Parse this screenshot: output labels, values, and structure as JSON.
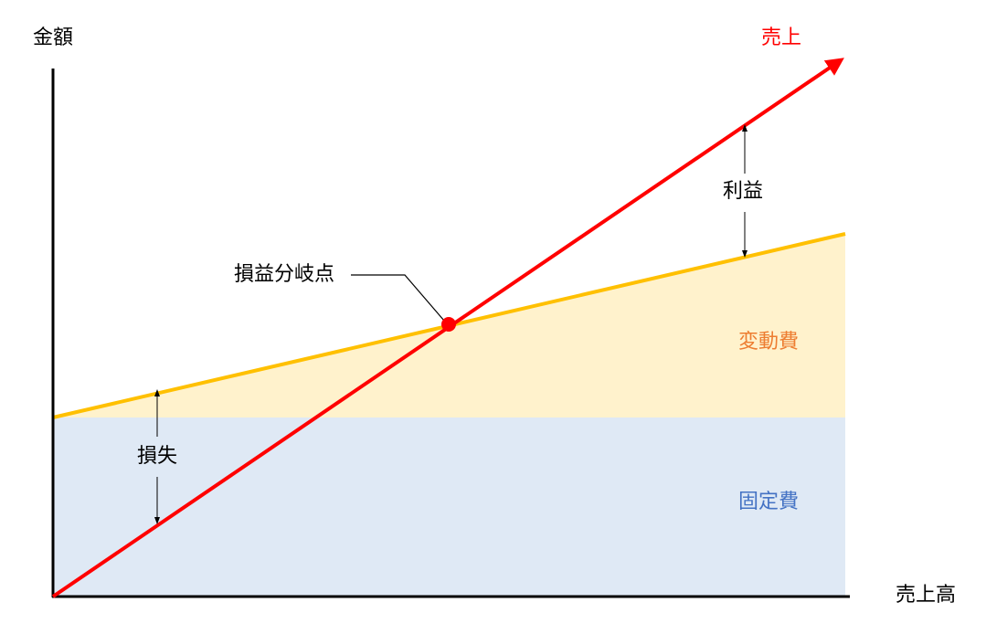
{
  "labels": {
    "y_axis": "金額",
    "x_axis": "売上高",
    "sales": "売上",
    "profit": "利益",
    "loss": "損失",
    "break_even": "損益分岐点",
    "variable_cost": "変動費",
    "fixed_cost": "固定費"
  },
  "colors": {
    "sales_line": "#ff0000",
    "variable_line": "#ffc000",
    "variable_fill": "#fff2cc",
    "fixed_fill": "#dfe9f5",
    "variable_text": "#ed7d31",
    "fixed_text": "#4472c4",
    "axis": "#000000"
  }
}
